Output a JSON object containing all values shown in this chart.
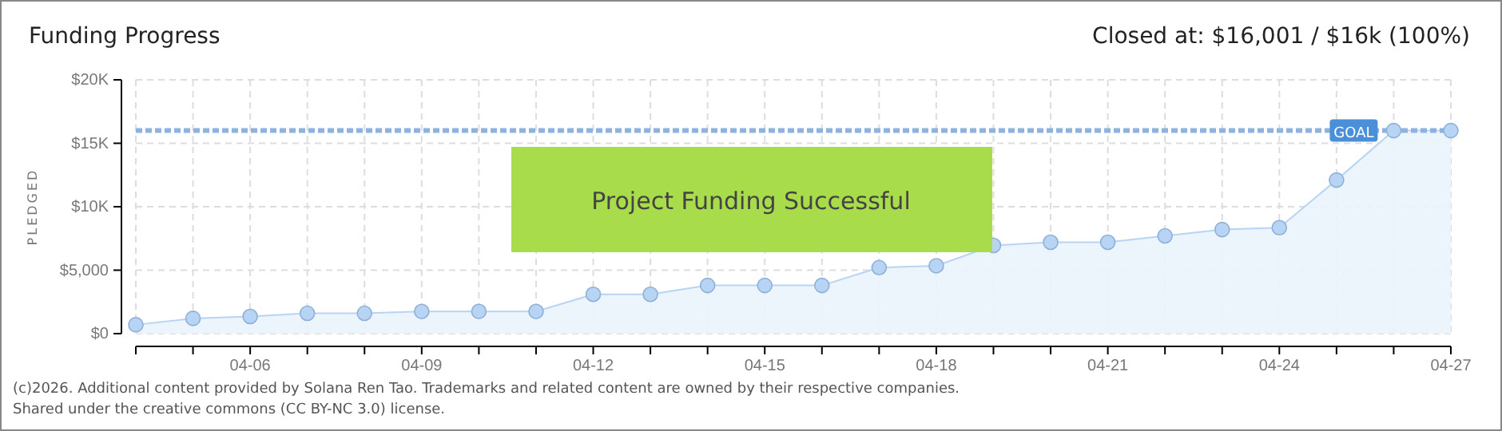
{
  "chart_data": {
    "type": "area",
    "title": "Funding Progress",
    "subtitle": "Closed at: $16,001 / $16k (100%)",
    "ylabel": "PLEDGED",
    "categories": [
      null,
      null,
      "04-06",
      null,
      null,
      "04-09",
      null,
      null,
      "04-12",
      null,
      null,
      "04-15",
      null,
      null,
      "04-18",
      null,
      null,
      "04-21",
      null,
      null,
      "04-24",
      null,
      null,
      "04-27"
    ],
    "series": [
      {
        "color": "#b8d4f4",
        "values": [
          700,
          1200,
          1350,
          1600,
          1600,
          1750,
          1750,
          1750,
          3100,
          3100,
          3800,
          3800,
          3800,
          5200,
          5350,
          6950,
          7200,
          7200,
          7700,
          8200,
          8350,
          12100,
          16000,
          16000
        ]
      }
    ],
    "ylim": [
      0,
      20000
    ],
    "yticks": [
      {
        "value": 0,
        "label": "$0"
      },
      {
        "value": 5000,
        "label": "$5,000"
      },
      {
        "value": 10000,
        "label": "$10K"
      },
      {
        "value": 15000,
        "label": "$15K"
      },
      {
        "value": 20000,
        "label": "$20K"
      }
    ],
    "grid": true,
    "marker": "circle",
    "ref_lines": [
      {
        "axis": "y",
        "value": 16000,
        "label": "GOAL",
        "color": "#8fb3e0",
        "line_style": "dashed"
      }
    ],
    "annotations": [
      "Project Funding Successful",
      "(c)2026. Additional content provided by Solana Ren Tao. Trademarks and related content are owned by their respective companies.",
      "Shared under the creative commons (CC BY-NC 3.0) license."
    ]
  }
}
